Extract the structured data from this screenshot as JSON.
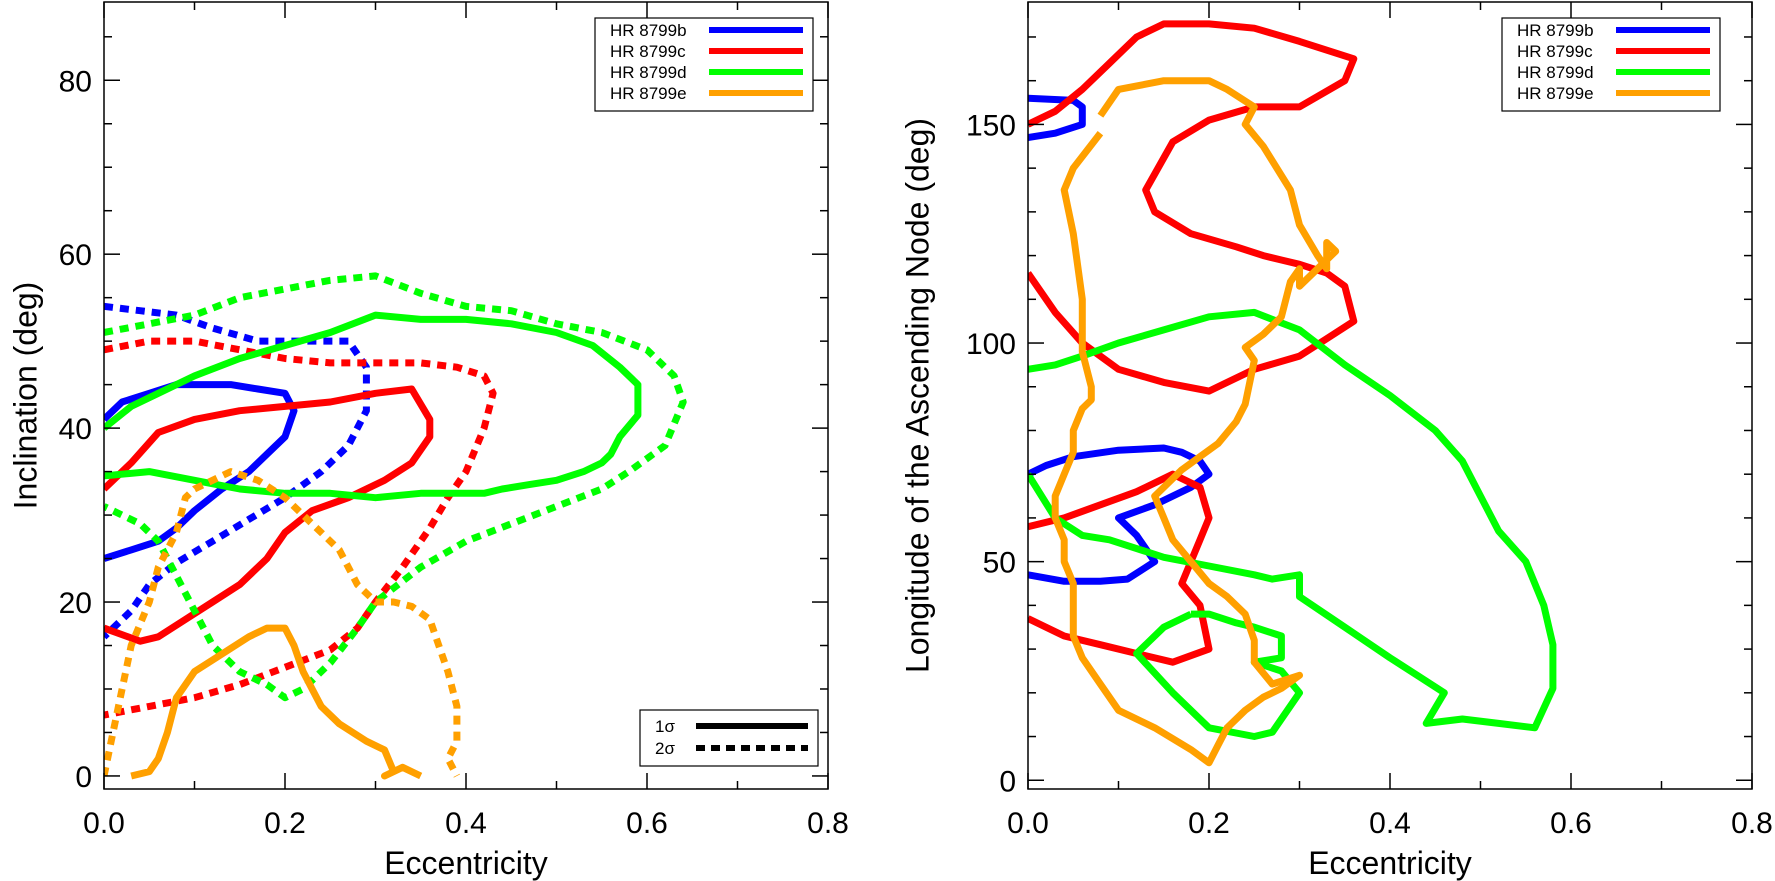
{
  "chart_data": [
    {
      "type": "line",
      "panel": "left",
      "title": "",
      "xlabel": "Eccentricity",
      "ylabel": "Inclination (deg)",
      "xlim": [
        0.0,
        0.8
      ],
      "ylim": [
        -1.5,
        89
      ],
      "xticks": [
        0.0,
        0.2,
        0.4,
        0.6,
        0.8
      ],
      "xtick_labels": [
        "0.0",
        "0.2",
        "0.4",
        "0.6",
        "0.8"
      ],
      "yticks": [
        0,
        20,
        40,
        60,
        80
      ],
      "ytick_labels": [
        "0",
        "20",
        "40",
        "60",
        "80"
      ],
      "x_minor_step": 0.1,
      "y_minor_step": 5,
      "legend": [
        {
          "label": "HR 8799b",
          "color": "#0000ff"
        },
        {
          "label": "HR 8799c",
          "color": "#ff0000"
        },
        {
          "label": "HR 8799d",
          "color": "#00ff00"
        },
        {
          "label": "HR 8799e",
          "color": "#ffa000"
        }
      ],
      "style_legend": [
        {
          "label": "1σ",
          "style": "solid"
        },
        {
          "label": "2σ",
          "style": "dashed"
        }
      ],
      "series": [
        {
          "name": "HR 8799b 1σ",
          "color": "#0000ff",
          "style": "solid",
          "x": [
            0.0,
            0.02,
            0.05,
            0.08,
            0.11,
            0.14,
            0.17,
            0.2,
            0.21,
            0.2,
            0.18,
            0.16,
            0.13,
            0.1,
            0.08,
            0.06,
            0.03,
            0.0
          ],
          "y": [
            41,
            43,
            44,
            45,
            45,
            45,
            44.5,
            44,
            42,
            39,
            37,
            35,
            33,
            30.5,
            28.5,
            27,
            26,
            25
          ]
        },
        {
          "name": "HR 8799b 2σ",
          "color": "#0000ff",
          "style": "dashed",
          "x": [
            0.0,
            0.04,
            0.08,
            0.12,
            0.17,
            0.22,
            0.27,
            0.29,
            0.29,
            0.27,
            0.24,
            0.2,
            0.16,
            0.12,
            0.08,
            0.05,
            0.03,
            0.0
          ],
          "y": [
            54,
            53.5,
            53,
            51.5,
            50,
            50,
            50,
            47,
            42,
            38,
            35,
            32,
            29.5,
            27,
            24.5,
            22,
            19,
            16
          ]
        },
        {
          "name": "HR 8799c 1σ",
          "color": "#ff0000",
          "style": "solid",
          "x": [
            0.0,
            0.03,
            0.06,
            0.1,
            0.15,
            0.2,
            0.25,
            0.3,
            0.34,
            0.36,
            0.36,
            0.34,
            0.31,
            0.27,
            0.23,
            0.2,
            0.18,
            0.15,
            0.12,
            0.09,
            0.06,
            0.04,
            0.0
          ],
          "y": [
            33,
            36,
            39.5,
            41,
            42,
            42.5,
            43,
            44,
            44.5,
            41,
            39,
            36,
            34,
            32,
            30.5,
            28,
            25,
            22,
            20,
            18,
            16,
            15.5,
            17
          ]
        },
        {
          "name": "HR 8799c 2σ",
          "color": "#ff0000",
          "style": "dashed",
          "x": [
            0.0,
            0.05,
            0.1,
            0.15,
            0.2,
            0.25,
            0.3,
            0.35,
            0.39,
            0.42,
            0.43,
            0.42,
            0.4,
            0.38,
            0.36,
            0.33,
            0.3,
            0.28,
            0.25,
            0.2,
            0.15,
            0.1,
            0.05,
            0.0
          ],
          "y": [
            49,
            50,
            50,
            49,
            48,
            47.5,
            47.5,
            47.5,
            47,
            46,
            44,
            40,
            35,
            32,
            28.5,
            24,
            20,
            17,
            14.5,
            12.5,
            10.5,
            9,
            8,
            7
          ]
        },
        {
          "name": "HR 8799d 1σ",
          "color": "#00ff00",
          "style": "solid",
          "x": [
            0.0,
            0.03,
            0.06,
            0.1,
            0.15,
            0.2,
            0.25,
            0.3,
            0.35,
            0.4,
            0.45,
            0.5,
            0.54,
            0.57,
            0.59,
            0.59,
            0.57,
            0.56,
            0.55,
            0.53,
            0.5,
            0.47,
            0.44,
            0.42,
            0.35,
            0.3,
            0.25,
            0.2,
            0.15,
            0.1,
            0.05,
            0.0
          ],
          "y": [
            40,
            42.5,
            44,
            46,
            48,
            49.5,
            51,
            53,
            52.5,
            52.5,
            52,
            51,
            49.5,
            47,
            45,
            41.5,
            39,
            37,
            36,
            35,
            34,
            33.5,
            33,
            32.5,
            32.5,
            32,
            32.5,
            32.5,
            33,
            34,
            35,
            34.5
          ]
        },
        {
          "name": "HR 8799d 2σ",
          "color": "#00ff00",
          "style": "dashed",
          "x": [
            0.0,
            0.05,
            0.1,
            0.15,
            0.2,
            0.25,
            0.3,
            0.35,
            0.4,
            0.45,
            0.5,
            0.55,
            0.6,
            0.63,
            0.64,
            0.62,
            0.58,
            0.55,
            0.5,
            0.45,
            0.4,
            0.35,
            0.3,
            0.28,
            0.25,
            0.22,
            0.2,
            0.18,
            0.15,
            0.12,
            0.1,
            0.08,
            0.06,
            0.04,
            0.02,
            0.0
          ],
          "y": [
            51,
            52,
            53,
            55,
            56,
            57,
            57.5,
            55.5,
            54,
            53.5,
            52,
            51,
            49,
            46,
            43,
            38,
            35,
            33,
            31,
            29,
            27,
            24,
            20,
            17,
            13,
            10,
            9,
            10.5,
            12,
            15,
            19,
            23,
            27,
            29,
            30,
            31
          ]
        },
        {
          "name": "HR 8799e 1σ",
          "color": "#ffa000",
          "style": "solid",
          "x": [
            0.03,
            0.05,
            0.06,
            0.07,
            0.08,
            0.1,
            0.13,
            0.16,
            0.18,
            0.2,
            0.21,
            0.22,
            0.23,
            0.24,
            0.26,
            0.29,
            0.31,
            0.32,
            0.31,
            0.33,
            0.35
          ],
          "y": [
            0,
            0.5,
            2,
            5,
            9,
            12,
            14,
            16,
            17,
            17,
            15,
            12,
            10,
            8,
            6,
            4,
            3,
            0.5,
            0,
            1,
            0
          ]
        },
        {
          "name": "HR 8799e 2σ",
          "color": "#ffa000",
          "style": "dashed",
          "x": [
            0.0,
            0.01,
            0.02,
            0.03,
            0.05,
            0.06,
            0.08,
            0.09,
            0.1,
            0.12,
            0.14,
            0.17,
            0.2,
            0.23,
            0.26,
            0.28,
            0.3,
            0.32,
            0.34,
            0.36,
            0.37,
            0.38,
            0.39,
            0.39,
            0.38,
            0.39
          ],
          "y": [
            0,
            5,
            10,
            15,
            20,
            24,
            28,
            32,
            33,
            34,
            35,
            34,
            32,
            29,
            26,
            22,
            20,
            20,
            19.5,
            18,
            15,
            12,
            8,
            4,
            2,
            0
          ]
        }
      ]
    },
    {
      "type": "line",
      "panel": "right",
      "title": "",
      "xlabel": "Eccentricity",
      "ylabel": "Longitude of the Ascending Node (deg)",
      "xlim": [
        0.0,
        0.8
      ],
      "ylim": [
        -2,
        178
      ],
      "xticks": [
        0.0,
        0.2,
        0.4,
        0.6,
        0.8
      ],
      "xtick_labels": [
        "0.0",
        "0.2",
        "0.4",
        "0.6",
        "0.8"
      ],
      "yticks": [
        0,
        50,
        100,
        150
      ],
      "ytick_labels": [
        "0",
        "50",
        "100",
        "150"
      ],
      "x_minor_step": 0.1,
      "y_minor_step": 10,
      "legend": [
        {
          "label": "HR 8799b",
          "color": "#0000ff"
        },
        {
          "label": "HR 8799c",
          "color": "#ff0000"
        },
        {
          "label": "HR 8799d",
          "color": "#00ff00"
        },
        {
          "label": "HR 8799e",
          "color": "#ffa000"
        }
      ],
      "series": [
        {
          "name": "HR 8799b upper",
          "color": "#0000ff",
          "style": "solid",
          "x": [
            0.0,
            0.05,
            0.06,
            0.06,
            0.03,
            0.0
          ],
          "y": [
            156,
            155.5,
            154,
            150,
            148,
            147
          ]
        },
        {
          "name": "HR 8799b lower",
          "color": "#0000ff",
          "style": "solid",
          "x": [
            0.0,
            0.02,
            0.05,
            0.1,
            0.15,
            0.17,
            0.19,
            0.2,
            0.18,
            0.14,
            0.1,
            0.12,
            0.14,
            0.11,
            0.08,
            0.04,
            0.0
          ],
          "y": [
            70,
            72,
            74,
            75.5,
            76,
            75,
            73,
            70,
            67,
            63,
            60,
            56,
            50,
            46,
            45.5,
            45.5,
            47
          ]
        },
        {
          "name": "HR 8799c upper",
          "color": "#ff0000",
          "style": "solid",
          "x": [
            0.0,
            0.03,
            0.06,
            0.09,
            0.12,
            0.15,
            0.2,
            0.25,
            0.3,
            0.36,
            0.35,
            0.3,
            0.25,
            0.2,
            0.16,
            0.13,
            0.14,
            0.18,
            0.23,
            0.26,
            0.28,
            0.3,
            0.33,
            0.35,
            0.36,
            0.33,
            0.3,
            0.25,
            0.2,
            0.15,
            0.1,
            0.06,
            0.03,
            0.0
          ],
          "y": [
            150,
            153,
            158,
            164,
            170,
            173,
            173,
            172,
            169,
            165,
            160,
            154,
            154,
            151,
            146,
            135,
            130,
            125,
            122,
            120,
            119,
            118,
            116,
            113,
            105,
            101,
            97,
            94,
            89,
            91,
            94,
            100,
            107,
            116
          ]
        },
        {
          "name": "HR 8799c lower",
          "color": "#ff0000",
          "style": "solid",
          "x": [
            0.0,
            0.04,
            0.08,
            0.12,
            0.16,
            0.19,
            0.2,
            0.19,
            0.18,
            0.17,
            0.19,
            0.2,
            0.16,
            0.12,
            0.08,
            0.04,
            0.0
          ],
          "y": [
            58,
            60,
            63,
            66,
            70,
            67,
            60,
            55,
            50,
            45,
            40,
            30,
            27,
            29,
            31,
            33,
            37
          ]
        },
        {
          "name": "HR 8799d upper",
          "color": "#00ff00",
          "style": "solid",
          "x": [
            0.0,
            0.03,
            0.06,
            0.1,
            0.15,
            0.2,
            0.25,
            0.3,
            0.35,
            0.4,
            0.45,
            0.48,
            0.5,
            0.52,
            0.55,
            0.57,
            0.58,
            0.58,
            0.56,
            0.52,
            0.48,
            0.44,
            0.46,
            0.43,
            0.4,
            0.35,
            0.3,
            0.3,
            0.27,
            0.25,
            0.2,
            0.15,
            0.09,
            0.06,
            0.03,
            0.0
          ],
          "y": [
            94,
            95,
            97,
            100,
            103,
            106,
            107,
            103,
            95,
            88,
            80,
            73,
            65,
            57,
            50,
            40,
            31,
            21,
            12,
            13,
            14,
            13,
            20,
            24,
            28,
            35,
            42,
            47,
            46,
            47,
            49,
            51,
            55,
            56,
            60,
            70
          ]
        },
        {
          "name": "HR 8799d lower",
          "color": "#00ff00",
          "style": "solid",
          "x": [
            0.18,
            0.2,
            0.23,
            0.25,
            0.28,
            0.28,
            0.25,
            0.28,
            0.3,
            0.27,
            0.25,
            0.2,
            0.16,
            0.12,
            0.15,
            0.18
          ],
          "y": [
            38,
            38,
            36,
            35,
            33,
            28,
            27,
            25,
            20,
            11,
            10,
            12,
            20,
            29,
            35,
            38
          ]
        },
        {
          "name": "HR 8799e",
          "color": "#ffa000",
          "style": "solid",
          "x": [
            0.08,
            0.1,
            0.15,
            0.2,
            0.22,
            0.25,
            0.24,
            0.26,
            0.29,
            0.3,
            0.32,
            0.33,
            0.33,
            0.34,
            0.32,
            0.3,
            0.3,
            0.29,
            0.28,
            0.26,
            0.24,
            0.25,
            0.24,
            0.23,
            0.21,
            0.17,
            0.14,
            0.15,
            0.16,
            0.18,
            0.2,
            0.22,
            0.24,
            0.25,
            0.25,
            0.27,
            0.3,
            0.28,
            0.26,
            0.24,
            0.22,
            0.21,
            0.2,
            0.18,
            0.14,
            0.1,
            0.08,
            0.06,
            0.05,
            0.05,
            0.04,
            0.04,
            0.03,
            0.03,
            0.04,
            0.05,
            0.05,
            0.06,
            0.07,
            0.07,
            0.06,
            0.06,
            0.05,
            0.04,
            0.05,
            0.08
          ],
          "y": [
            152,
            158,
            160,
            160,
            158,
            154,
            150,
            145,
            135,
            127,
            120,
            117,
            123,
            121,
            117,
            113,
            117,
            114,
            106,
            102,
            99,
            96,
            86,
            82,
            77,
            71,
            65,
            60,
            55,
            50,
            45,
            42,
            38,
            32,
            27,
            22,
            24,
            21,
            19,
            16,
            12,
            8,
            4,
            7,
            12,
            16,
            22,
            28,
            33,
            45,
            50,
            55,
            60,
            65,
            70,
            75,
            80,
            85,
            87,
            90,
            98,
            110,
            125,
            135,
            140,
            148
          ]
        }
      ]
    }
  ]
}
